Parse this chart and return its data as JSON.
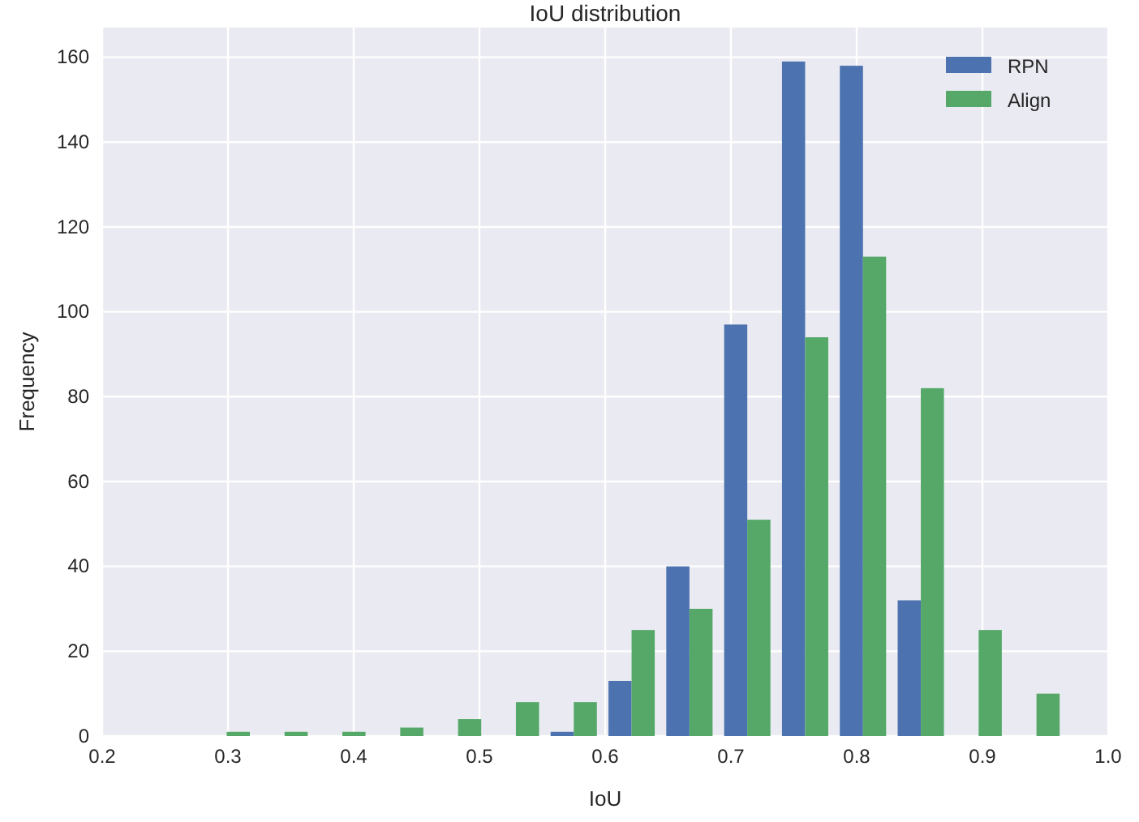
{
  "chart_data": {
    "type": "histogram",
    "title": "IoU distribution",
    "xlabel": "IoU",
    "ylabel": "Frequency",
    "bins": [
      0.276,
      0.322,
      0.368,
      0.414,
      0.46,
      0.506,
      0.552,
      0.598,
      0.644,
      0.69,
      0.736,
      0.782,
      0.828,
      0.874,
      0.92,
      0.966
    ],
    "series": [
      {
        "name": "RPN",
        "color": "#4c72b0",
        "values": [
          0,
          0,
          0,
          0,
          0,
          0,
          1,
          13,
          40,
          97,
          159,
          158,
          32,
          0,
          0
        ]
      },
      {
        "name": "Align",
        "color": "#55a868",
        "values": [
          1,
          1,
          1,
          2,
          4,
          8,
          8,
          25,
          30,
          51,
          94,
          113,
          82,
          25,
          10
        ]
      }
    ],
    "xlim": [
      0.2,
      1.0
    ],
    "xticks": [
      0.2,
      0.3,
      0.4,
      0.5,
      0.6,
      0.7,
      0.8,
      0.9,
      {
        "value": 1,
        "label": "1.0"
      }
    ],
    "ylim": [
      0,
      167
    ],
    "yticks": [
      0,
      20,
      40,
      60,
      80,
      100,
      120,
      140,
      160
    ],
    "grid": true,
    "legend": "top right"
  }
}
